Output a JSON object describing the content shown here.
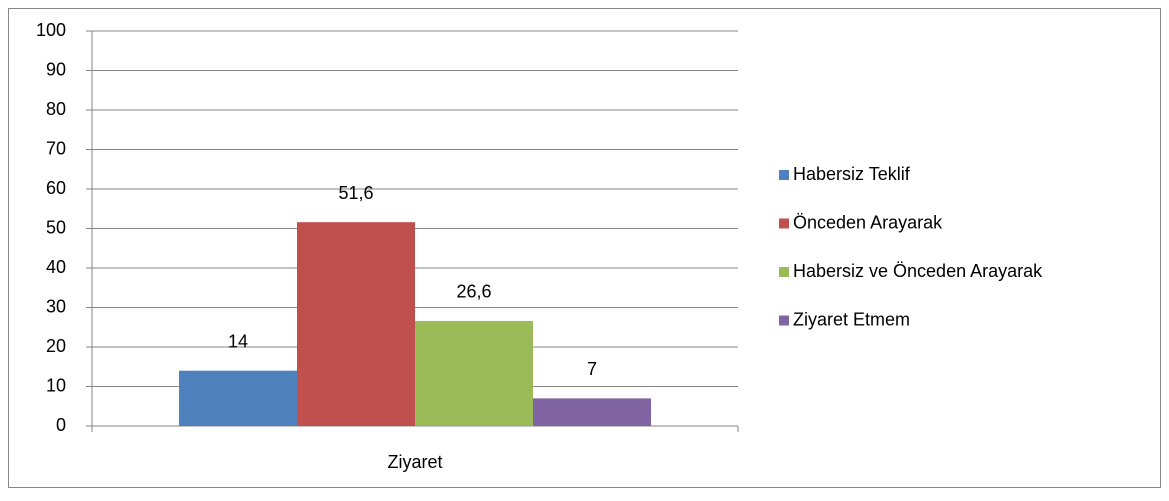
{
  "chart_data": {
    "type": "bar",
    "categories": [
      "Ziyaret"
    ],
    "series": [
      {
        "name": "Habersiz Teklif",
        "color": "#4f81bd",
        "values": [
          14
        ]
      },
      {
        "name": "Önceden Arayarak",
        "color": "#c0504d",
        "values": [
          51.6
        ],
        "value_labels": [
          "51,6"
        ]
      },
      {
        "name": "Habersiz ve Önceden Arayarak",
        "color": "#9bbb59",
        "values": [
          26.6
        ],
        "value_labels": [
          "26,6"
        ]
      },
      {
        "name": "Ziyaret Etmem",
        "color": "#8064a2",
        "values": [
          7
        ]
      }
    ],
    "ylim": [
      0,
      100
    ],
    "yticks": [
      0,
      10,
      20,
      30,
      40,
      50,
      60,
      70,
      80,
      90,
      100
    ],
    "grid": true,
    "legend": "right"
  }
}
